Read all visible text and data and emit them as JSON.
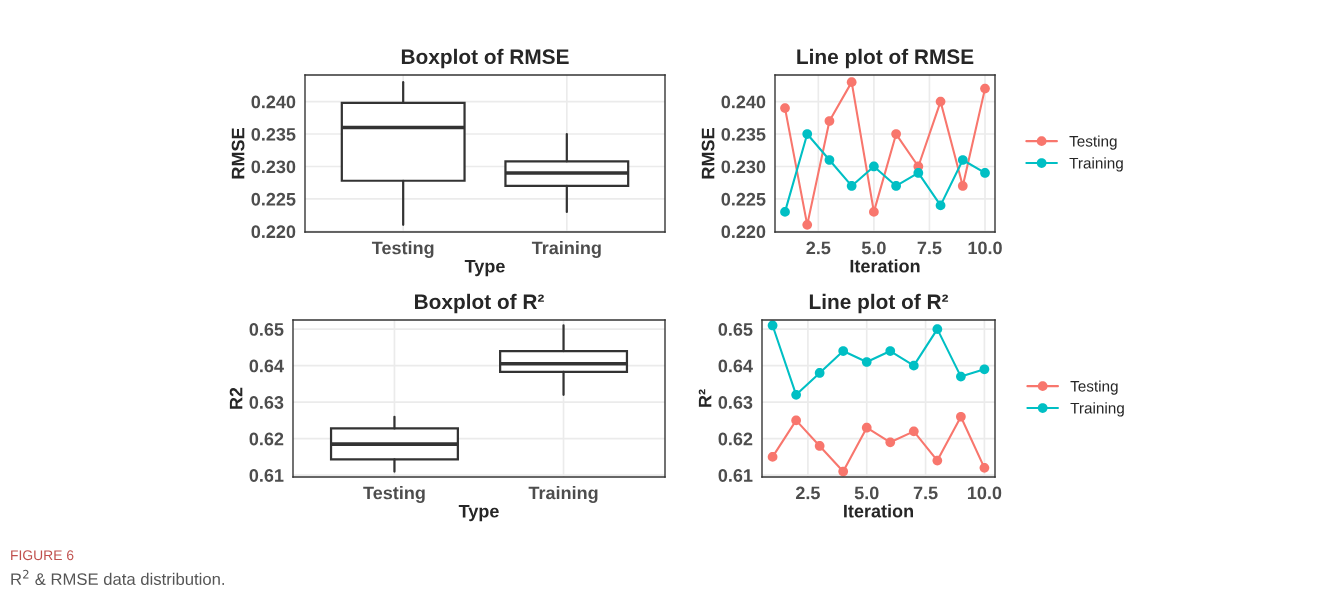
{
  "chart_data": [
    {
      "type": "box",
      "title": "Boxplot of RMSE",
      "xlabel": "Type",
      "ylabel": "RMSE",
      "categories": [
        "Testing",
        "Training"
      ],
      "boxes": [
        {
          "low": 0.221,
          "q1": 0.2278,
          "median": 0.236,
          "q3": 0.2398,
          "high": 0.243
        },
        {
          "low": 0.223,
          "q1": 0.227,
          "median": 0.229,
          "q3": 0.2308,
          "high": 0.235
        }
      ],
      "ylim": [
        0.2199,
        0.2441
      ],
      "yticks": [
        {
          "value": 0.22,
          "label": "0.220"
        },
        {
          "value": 0.225,
          "label": "0.225"
        },
        {
          "value": 0.23,
          "label": "0.230"
        },
        {
          "value": 0.235,
          "label": "0.235"
        },
        {
          "value": 0.24,
          "label": "0.240"
        }
      ],
      "grid": true,
      "annotations": [
        "FIGURE 6",
        "R$^{2}$ & RMSE data distribution."
      ]
    },
    {
      "type": "line",
      "title": "Line plot of RMSE",
      "xlabel": "Iteration",
      "ylabel": "RMSE",
      "x": [
        1,
        2,
        3,
        4,
        5,
        6,
        7,
        8,
        9,
        10
      ],
      "series": [
        {
          "name": "Testing",
          "color": "#f8766d",
          "values": [
            0.239,
            0.221,
            0.237,
            0.243,
            0.223,
            0.235,
            0.23,
            0.24,
            0.227,
            0.242
          ]
        },
        {
          "name": "Training",
          "color": "#00bfc4",
          "values": [
            0.223,
            0.235,
            0.231,
            0.227,
            0.23,
            0.227,
            0.229,
            0.224,
            0.231,
            0.229
          ]
        }
      ],
      "xlim": [
        0.55,
        10.45
      ],
      "xticks": [
        {
          "value": 2.5,
          "label": "2.5"
        },
        {
          "value": 5,
          "label": "5.0"
        },
        {
          "value": 7.5,
          "label": "7.5"
        },
        {
          "value": 10,
          "label": "10.0"
        }
      ],
      "ylim": [
        0.2199,
        0.2441
      ],
      "yticks": [
        {
          "value": 0.22,
          "label": "0.220"
        },
        {
          "value": 0.225,
          "label": "0.225"
        },
        {
          "value": 0.23,
          "label": "0.230"
        },
        {
          "value": 0.235,
          "label": "0.235"
        },
        {
          "value": 0.24,
          "label": "0.240"
        }
      ],
      "grid": true,
      "marker": "circle",
      "legend": "right"
    },
    {
      "type": "box",
      "title": "Boxplot of R²",
      "xlabel": "Type",
      "ylabel": "R2",
      "categories": [
        "Testing",
        "Training"
      ],
      "boxes": [
        {
          "low": 0.611,
          "q1": 0.6143,
          "median": 0.6185,
          "q3": 0.6228,
          "high": 0.626
        },
        {
          "low": 0.632,
          "q1": 0.6383,
          "median": 0.6405,
          "q3": 0.644,
          "high": 0.651
        }
      ],
      "ylim": [
        0.6095,
        0.6525
      ],
      "yticks": [
        {
          "value": 0.61,
          "label": "0.61"
        },
        {
          "value": 0.62,
          "label": "0.62"
        },
        {
          "value": 0.63,
          "label": "0.63"
        },
        {
          "value": 0.64,
          "label": "0.64"
        },
        {
          "value": 0.65,
          "label": "0.65"
        }
      ],
      "grid": true
    },
    {
      "type": "line",
      "title": "Line plot of R²",
      "xlabel": "Iteration",
      "ylabel": "R²",
      "x": [
        1,
        2,
        3,
        4,
        5,
        6,
        7,
        8,
        9,
        10
      ],
      "series": [
        {
          "name": "Testing",
          "color": "#f8766d",
          "values": [
            0.615,
            0.625,
            0.618,
            0.611,
            0.623,
            0.619,
            0.622,
            0.614,
            0.626,
            0.612
          ]
        },
        {
          "name": "Training",
          "color": "#00bfc4",
          "values": [
            0.651,
            0.632,
            0.638,
            0.644,
            0.641,
            0.644,
            0.64,
            0.65,
            0.637,
            0.639
          ]
        }
      ],
      "xlim": [
        0.55,
        10.45
      ],
      "xticks": [
        {
          "value": 2.5,
          "label": "2.5"
        },
        {
          "value": 5,
          "label": "5.0"
        },
        {
          "value": 7.5,
          "label": "7.5"
        },
        {
          "value": 10,
          "label": "10.0"
        }
      ],
      "ylim": [
        0.6095,
        0.6525
      ],
      "yticks": [
        {
          "value": 0.61,
          "label": "0.61"
        },
        {
          "value": 0.62,
          "label": "0.62"
        },
        {
          "value": 0.63,
          "label": "0.63"
        },
        {
          "value": 0.64,
          "label": "0.64"
        },
        {
          "value": 0.65,
          "label": "0.65"
        }
      ],
      "grid": true,
      "marker": "circle",
      "legend": "right"
    }
  ]
}
